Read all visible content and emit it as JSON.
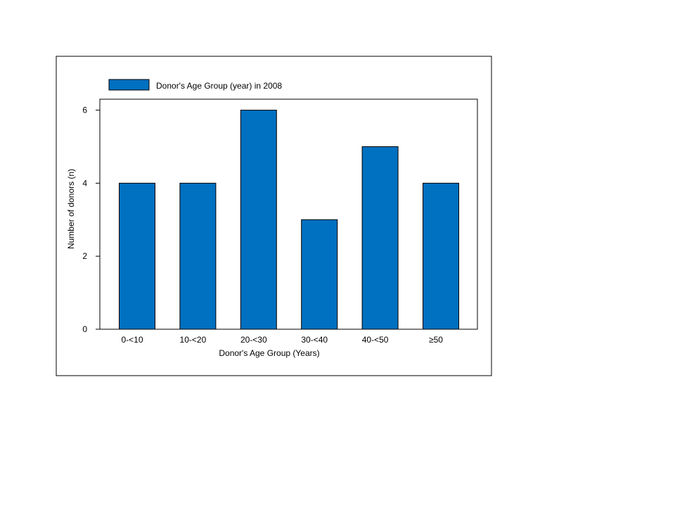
{
  "chart_data": {
    "type": "bar",
    "title": "",
    "xlabel": "Donor's Age Group (Years)",
    "ylabel": "Number of donors (n)",
    "categories": [
      "0-<10",
      "10-<20",
      "20-<30",
      "30-<40",
      "40-<50",
      "≥50"
    ],
    "series": [
      {
        "name": "Donor's Age Group (year) in 2008",
        "values": [
          4,
          4,
          6,
          3,
          5,
          4
        ]
      }
    ],
    "ylim": [
      0,
      6.3
    ],
    "yticks": [
      0,
      2,
      4,
      6
    ],
    "grid": false,
    "legend_position": "top-left",
    "colors": {
      "bar": "#0070c0",
      "bar_edge": "#000000",
      "axis": "#000000",
      "frame": "#000000"
    }
  }
}
